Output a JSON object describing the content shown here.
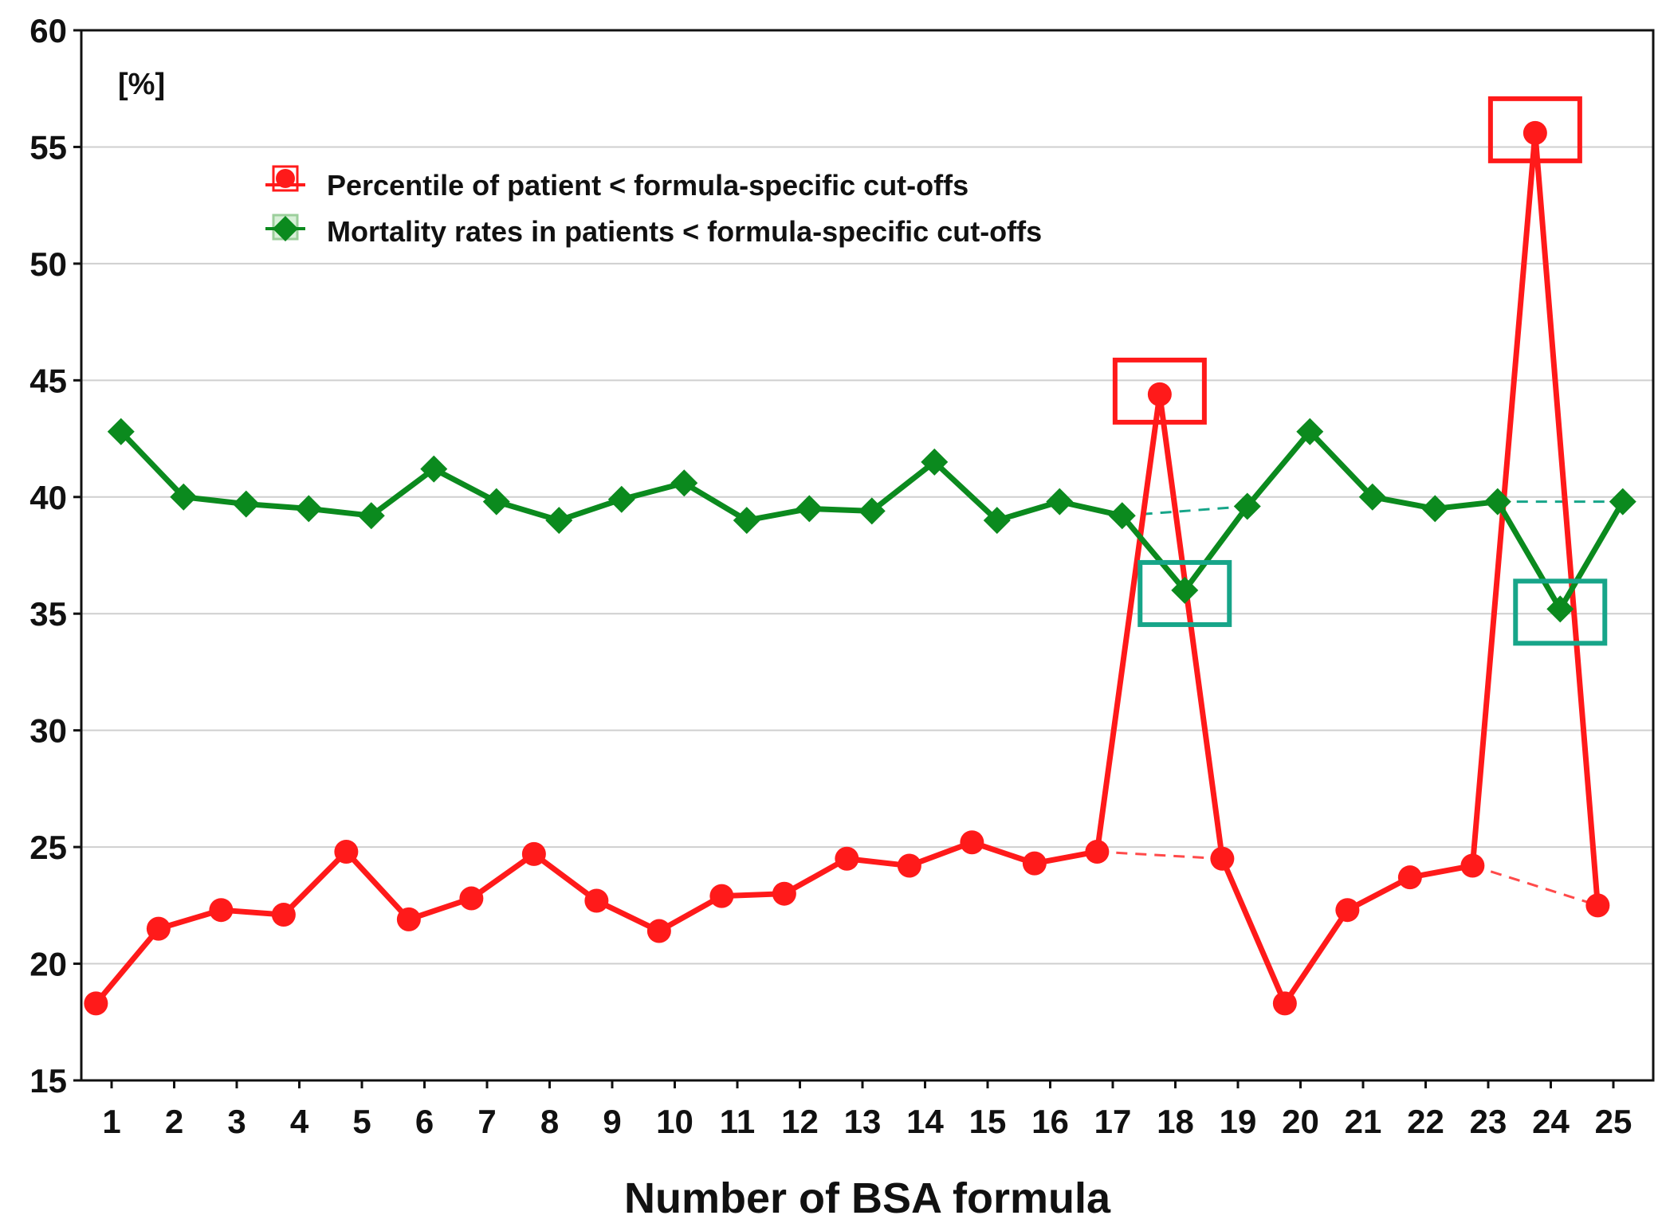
{
  "chart_data": {
    "type": "line",
    "title": "",
    "xlabel": "Number of BSA formula",
    "ylabel": "",
    "unit_label": "[%]",
    "ylim": [
      15,
      60
    ],
    "yticks": [
      15,
      20,
      25,
      30,
      35,
      40,
      45,
      50,
      55,
      60
    ],
    "categories": [
      "1",
      "2",
      "3",
      "4",
      "5",
      "6",
      "7",
      "8",
      "9",
      "10",
      "11",
      "12",
      "13",
      "14",
      "15",
      "16",
      "17",
      "18",
      "19",
      "20",
      "21",
      "22",
      "23",
      "24",
      "25"
    ],
    "grid": true,
    "legend_position": "top-left",
    "series": [
      {
        "name": "Percentile of patient < formula-specific cut-offs",
        "marker": "circle",
        "color": "#ff1a1a",
        "offset": -0.25,
        "values": [
          18.3,
          21.5,
          22.3,
          22.1,
          24.8,
          21.9,
          22.8,
          24.7,
          22.7,
          21.4,
          22.9,
          23.0,
          24.5,
          24.2,
          25.2,
          24.3,
          24.8,
          44.4,
          24.5,
          18.3,
          22.3,
          23.7,
          24.2,
          55.6,
          22.5
        ]
      },
      {
        "name": "Mortality rates in patients < formula-specific cut-offs",
        "marker": "diamond",
        "color": "#0b8a1e",
        "offset": 0.15,
        "values": [
          42.8,
          40.0,
          39.7,
          39.5,
          39.2,
          41.2,
          39.8,
          39.0,
          39.9,
          40.6,
          39.0,
          39.5,
          39.4,
          41.5,
          39.0,
          39.8,
          39.2,
          36.0,
          39.6,
          42.8,
          40.0,
          39.5,
          39.8,
          35.2,
          39.8
        ]
      }
    ],
    "dashed_bridges": [
      {
        "series": "Percentile of patient < formula-specific cut-offs",
        "from": "17",
        "to": "19"
      },
      {
        "series": "Percentile of patient < formula-specific cut-offs",
        "from": "23",
        "to": "25"
      },
      {
        "series": "Mortality rates in patients < formula-specific cut-offs",
        "from": "17",
        "to": "19"
      },
      {
        "series": "Mortality rates in patients < formula-specific cut-offs",
        "from": "23",
        "to": "25"
      }
    ],
    "highlight_boxes": [
      {
        "series": "Percentile of patient < formula-specific cut-offs",
        "category": "18",
        "color": "#ff1a1a"
      },
      {
        "series": "Percentile of patient < formula-specific cut-offs",
        "category": "24",
        "color": "#ff1a1a"
      },
      {
        "series": "Mortality rates in patients < formula-specific cut-offs",
        "category": "18",
        "color": "#17a589"
      },
      {
        "series": "Mortality rates in patients < formula-specific cut-offs",
        "category": "24",
        "color": "#17a589"
      }
    ],
    "dashed_colors": {
      "Percentile of patient < formula-specific cut-offs": "#ff4a4a",
      "Mortality rates in patients < formula-specific cut-offs": "#17a589"
    }
  }
}
